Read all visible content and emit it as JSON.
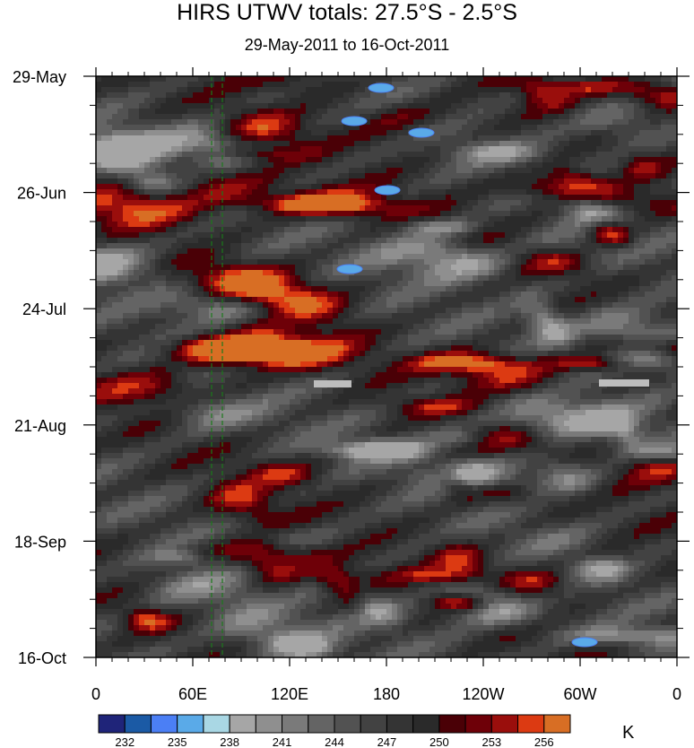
{
  "chart_data": {
    "type": "heatmap",
    "title": "HIRS UTWV totals: 27.5°S - 2.5°S",
    "subtitle": "29-May-2011 to 16-Oct-2011",
    "x_ticks": [
      "0",
      "60E",
      "120E",
      "180",
      "120W",
      "60W",
      "0"
    ],
    "x_tick_values": [
      0,
      60,
      120,
      180,
      240,
      300,
      360
    ],
    "xlim": [
      0,
      360
    ],
    "y_ticks": [
      "29-May",
      "26-Jun",
      "24-Jul",
      "21-Aug",
      "18-Sep",
      "16-Oct"
    ],
    "y_tick_values": [
      "2011-05-29",
      "2011-06-26",
      "2011-07-24",
      "2011-08-21",
      "2011-09-18",
      "2011-10-16"
    ],
    "ylim": [
      "2011-05-29",
      "2011-10-16"
    ],
    "y_direction": "time increases downward",
    "colorbar": {
      "units": "K",
      "labels": [
        "232",
        "235",
        "238",
        "241",
        "244",
        "247",
        "250",
        "253",
        "256"
      ],
      "label_values": [
        232,
        235,
        238,
        241,
        244,
        247,
        250,
        253,
        256
      ],
      "colors": [
        "#1f2479",
        "#1b5aa5",
        "#4b7ff5",
        "#5aaae8",
        "#a9d7e4",
        "#a6a6a6",
        "#8f8f8f",
        "#7a7a7a",
        "#646464",
        "#525252",
        "#424242",
        "#343434",
        "#2a2a2a",
        "#4a0006",
        "#6e0008",
        "#9a0e0c",
        "#dc3a12",
        "#d86e24"
      ]
    }
  }
}
